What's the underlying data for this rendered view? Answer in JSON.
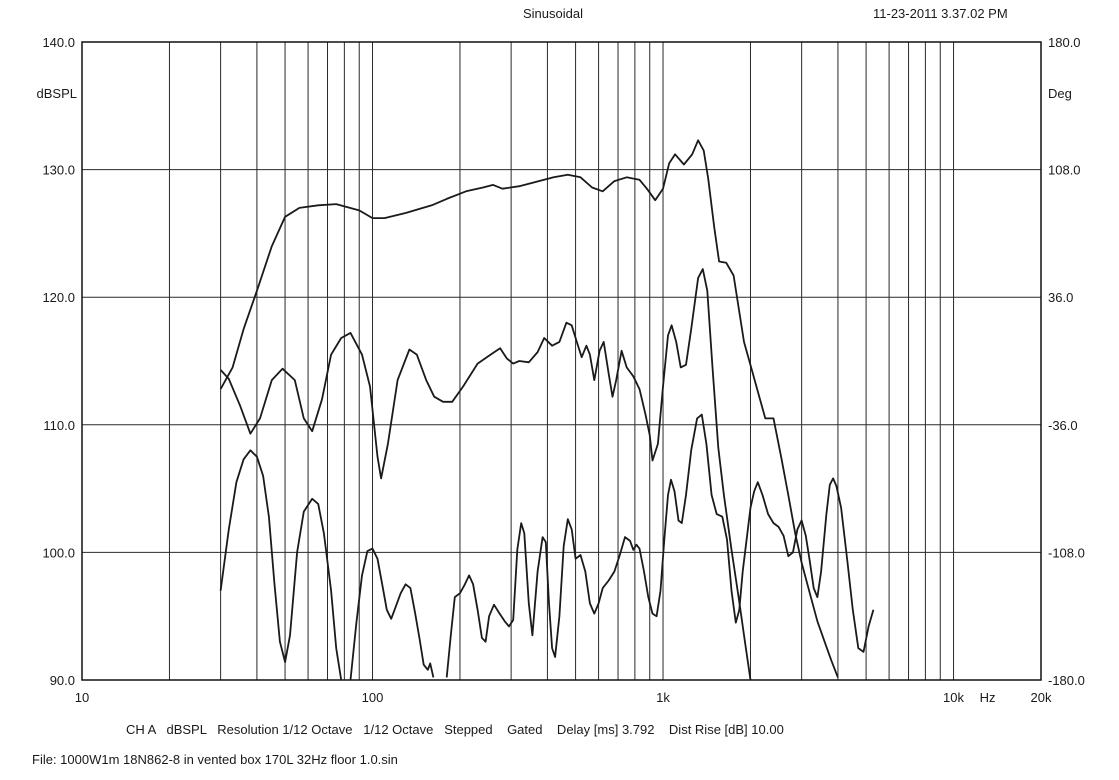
{
  "header": {
    "mode": "Sinusoidal",
    "timestamp": "11-23-2011 3.37.02 PM"
  },
  "footer": {
    "settings": "CH A   dBSPL   Resolution 1/12 Octave   1/12 Octave   Stepped    Gated    Delay [ms] 3.792    Dist Rise [dB] 10.00",
    "file": "File: 1000W1m 18N862-8 in vented box 170L 32Hz floor 1.0.sin"
  },
  "chart_data": {
    "type": "line",
    "x_scale": "log",
    "xlim": [
      10,
      20000
    ],
    "ylim": [
      90,
      140
    ],
    "ylim_right": [
      -180,
      180
    ],
    "grid": true,
    "ylabel": "dBSPL",
    "ylabel_right": "Deg",
    "xlabel": "Hz",
    "y_ticks": [
      "90.0",
      "100.0",
      "110.0",
      "120.0",
      "130.0",
      "140.0"
    ],
    "y_ticks_right": [
      "-180.0",
      "-108.0",
      "-36.0",
      "36.0",
      "108.0",
      "180.0"
    ],
    "x_tick_labels": [
      {
        "x": 10,
        "label": "10"
      },
      {
        "x": 100,
        "label": "100"
      },
      {
        "x": 1000,
        "label": "1k"
      },
      {
        "x": 10000,
        "label": "10k"
      },
      {
        "x": 20000,
        "label": "20k"
      }
    ],
    "series": [
      {
        "role": "magnitude",
        "axis": "left",
        "points": [
          [
            30,
            112.8
          ],
          [
            33,
            114.5
          ],
          [
            36,
            117.5
          ],
          [
            40,
            120.5
          ],
          [
            45,
            124
          ],
          [
            50,
            126.3
          ],
          [
            56,
            127
          ],
          [
            65,
            127.2
          ],
          [
            75,
            127.3
          ],
          [
            90,
            126.8
          ],
          [
            100,
            126.2
          ],
          [
            110,
            126.2
          ],
          [
            130,
            126.6
          ],
          [
            160,
            127.2
          ],
          [
            180,
            127.7
          ],
          [
            210,
            128.3
          ],
          [
            240,
            128.6
          ],
          [
            260,
            128.8
          ],
          [
            280,
            128.5
          ],
          [
            320,
            128.7
          ],
          [
            360,
            129
          ],
          [
            420,
            129.4
          ],
          [
            470,
            129.6
          ],
          [
            520,
            129.4
          ],
          [
            570,
            128.6
          ],
          [
            620,
            128.3
          ],
          [
            680,
            129.1
          ],
          [
            750,
            129.4
          ],
          [
            830,
            129.2
          ],
          [
            880,
            128.5
          ],
          [
            940,
            127.6
          ],
          [
            1000,
            128.5
          ],
          [
            1050,
            130.5
          ],
          [
            1100,
            131.2
          ],
          [
            1180,
            130.4
          ],
          [
            1260,
            131.2
          ],
          [
            1320,
            132.3
          ],
          [
            1380,
            131.5
          ],
          [
            1430,
            129.3
          ],
          [
            1500,
            125.5
          ],
          [
            1560,
            122.8
          ],
          [
            1650,
            122.7
          ],
          [
            1750,
            121.7
          ],
          [
            1900,
            116.5
          ],
          [
            2050,
            113.8
          ],
          [
            2250,
            110.5
          ],
          [
            2400,
            110.5
          ],
          [
            2550,
            107.5
          ],
          [
            2700,
            104.5
          ],
          [
            2850,
            101.5
          ],
          [
            3000,
            99.2
          ],
          [
            3200,
            96.8
          ],
          [
            3400,
            94.6
          ],
          [
            3600,
            93
          ],
          [
            3800,
            91.5
          ],
          [
            4000,
            90.2
          ]
        ]
      },
      {
        "role": "curve-2",
        "axis": "left",
        "points": [
          [
            30,
            114.3
          ],
          [
            32,
            113.6
          ],
          [
            35,
            111.5
          ],
          [
            38,
            109.3
          ],
          [
            41,
            110.5
          ],
          [
            45,
            113.5
          ],
          [
            49,
            114.4
          ],
          [
            54,
            113.5
          ],
          [
            58,
            110.5
          ],
          [
            62,
            109.5
          ],
          [
            67,
            112
          ],
          [
            72,
            115.5
          ],
          [
            78,
            116.8
          ],
          [
            84,
            117.2
          ],
          [
            92,
            115.5
          ],
          [
            98,
            113
          ],
          [
            104,
            107.5
          ],
          [
            107,
            105.8
          ],
          [
            113,
            108.5
          ],
          [
            122,
            113.5
          ],
          [
            134,
            115.9
          ],
          [
            142,
            115.5
          ],
          [
            153,
            113.5
          ],
          [
            163,
            112.2
          ],
          [
            175,
            111.8
          ],
          [
            188,
            111.8
          ],
          [
            205,
            113
          ],
          [
            230,
            114.8
          ],
          [
            255,
            115.5
          ],
          [
            275,
            116
          ],
          [
            290,
            115.2
          ],
          [
            305,
            114.8
          ],
          [
            320,
            115
          ],
          [
            345,
            114.9
          ],
          [
            370,
            115.7
          ],
          [
            390,
            116.8
          ],
          [
            415,
            116.2
          ],
          [
            440,
            116.5
          ],
          [
            465,
            118
          ],
          [
            485,
            117.8
          ],
          [
            505,
            116.5
          ],
          [
            525,
            115.3
          ],
          [
            545,
            116.2
          ],
          [
            560,
            115.5
          ],
          [
            580,
            113.5
          ],
          [
            605,
            115.8
          ],
          [
            625,
            116.5
          ],
          [
            650,
            114
          ],
          [
            670,
            112.2
          ],
          [
            690,
            113.5
          ],
          [
            720,
            115.8
          ],
          [
            750,
            114.5
          ],
          [
            790,
            113.8
          ],
          [
            830,
            112.8
          ],
          [
            870,
            110.8
          ],
          [
            900,
            109.2
          ],
          [
            920,
            107.2
          ],
          [
            960,
            108.5
          ],
          [
            1000,
            113
          ],
          [
            1040,
            117
          ],
          [
            1070,
            117.8
          ],
          [
            1110,
            116.5
          ],
          [
            1150,
            114.5
          ],
          [
            1200,
            114.7
          ],
          [
            1250,
            117.5
          ],
          [
            1320,
            121.5
          ],
          [
            1370,
            122.2
          ],
          [
            1420,
            120.5
          ],
          [
            1480,
            114.5
          ],
          [
            1550,
            108.2
          ],
          [
            1620,
            104.5
          ],
          [
            1720,
            100.2
          ],
          [
            1820,
            96.5
          ],
          [
            1920,
            92.8
          ],
          [
            2000,
            90
          ]
        ]
      },
      {
        "role": "phase",
        "axis": "left",
        "points": [
          [
            30,
            97
          ],
          [
            32,
            101.8
          ],
          [
            34,
            105.5
          ],
          [
            36,
            107.3
          ],
          [
            38,
            108
          ],
          [
            40,
            107.5
          ],
          [
            42,
            106
          ],
          [
            44,
            102.8
          ],
          [
            46,
            97.5
          ],
          [
            48,
            93
          ],
          [
            50,
            91.4
          ],
          [
            52,
            93.5
          ],
          [
            55,
            100
          ],
          [
            58,
            103.2
          ],
          [
            62,
            104.2
          ],
          [
            65,
            103.8
          ],
          [
            68,
            101.5
          ],
          [
            72,
            97
          ],
          [
            75,
            92.5
          ],
          [
            78,
            90
          ]
        ],
        "gap_after": true,
        "points_b": [
          [
            84,
            90
          ],
          [
            88,
            94.5
          ],
          [
            92,
            98.2
          ],
          [
            96,
            100.1
          ],
          [
            100,
            100.3
          ],
          [
            104,
            99.5
          ],
          [
            108,
            97.5
          ],
          [
            112,
            95.5
          ],
          [
            116,
            94.8
          ],
          [
            120,
            95.7
          ],
          [
            125,
            96.8
          ],
          [
            130,
            97.5
          ],
          [
            135,
            97.2
          ],
          [
            140,
            95.3
          ],
          [
            145,
            93.3
          ],
          [
            150,
            91.2
          ],
          [
            155,
            90.8
          ],
          [
            158,
            91.3
          ],
          [
            162,
            90.2
          ]
        ],
        "points_c": [
          [
            180,
            90.2
          ],
          [
            186,
            93.5
          ],
          [
            192,
            96.5
          ],
          [
            200,
            96.8
          ],
          [
            208,
            97.5
          ],
          [
            215,
            98.2
          ],
          [
            222,
            97.5
          ],
          [
            230,
            95.5
          ],
          [
            238,
            93.3
          ],
          [
            245,
            93
          ],
          [
            252,
            95
          ],
          [
            262,
            95.9
          ],
          [
            272,
            95.3
          ],
          [
            285,
            94.6
          ],
          [
            295,
            94.2
          ],
          [
            305,
            94.7
          ],
          [
            315,
            100.2
          ],
          [
            325,
            102.3
          ],
          [
            333,
            101.5
          ],
          [
            345,
            96
          ],
          [
            355,
            93.5
          ],
          [
            370,
            98.5
          ],
          [
            385,
            101.2
          ],
          [
            395,
            100.8
          ],
          [
            405,
            96
          ],
          [
            415,
            92.5
          ],
          [
            425,
            91.8
          ],
          [
            440,
            95
          ],
          [
            455,
            100.5
          ],
          [
            470,
            102.6
          ],
          [
            485,
            101.8
          ],
          [
            500,
            99.5
          ],
          [
            520,
            99.8
          ],
          [
            540,
            98.5
          ],
          [
            560,
            96
          ],
          [
            580,
            95.2
          ],
          [
            600,
            96
          ],
          [
            620,
            97.2
          ],
          [
            650,
            97.8
          ],
          [
            680,
            98.5
          ],
          [
            710,
            99.8
          ],
          [
            740,
            101.2
          ],
          [
            770,
            100.9
          ],
          [
            790,
            100.2
          ],
          [
            810,
            100.6
          ],
          [
            830,
            100.3
          ],
          [
            860,
            98.5
          ],
          [
            890,
            96.5
          ],
          [
            920,
            95.2
          ],
          [
            950,
            95
          ],
          [
            980,
            97
          ],
          [
            1010,
            101
          ],
          [
            1040,
            104.5
          ],
          [
            1065,
            105.7
          ],
          [
            1095,
            104.8
          ],
          [
            1130,
            102.5
          ],
          [
            1160,
            102.3
          ],
          [
            1200,
            104.5
          ],
          [
            1250,
            108
          ],
          [
            1310,
            110.5
          ],
          [
            1360,
            110.8
          ],
          [
            1410,
            108.5
          ],
          [
            1470,
            104.5
          ],
          [
            1530,
            103
          ],
          [
            1600,
            102.8
          ],
          [
            1660,
            101
          ],
          [
            1720,
            97
          ],
          [
            1780,
            94.5
          ],
          [
            1830,
            95.5
          ],
          [
            1880,
            98.5
          ],
          [
            1940,
            101
          ],
          [
            2000,
            103.5
          ],
          [
            2060,
            104.8
          ],
          [
            2120,
            105.5
          ],
          [
            2200,
            104.5
          ],
          [
            2300,
            103
          ],
          [
            2400,
            102.3
          ],
          [
            2500,
            102
          ],
          [
            2600,
            101.3
          ],
          [
            2700,
            99.7
          ],
          [
            2800,
            100
          ],
          [
            2900,
            101.8
          ],
          [
            3000,
            102.5
          ],
          [
            3100,
            101.3
          ],
          [
            3200,
            99.3
          ],
          [
            3300,
            97.2
          ],
          [
            3400,
            96.5
          ],
          [
            3500,
            98.5
          ],
          [
            3650,
            103
          ],
          [
            3750,
            105.3
          ],
          [
            3850,
            105.8
          ],
          [
            3950,
            105.2
          ],
          [
            4100,
            103.5
          ],
          [
            4300,
            99.5
          ],
          [
            4500,
            95.5
          ],
          [
            4700,
            92.5
          ],
          [
            4900,
            92.2
          ],
          [
            5100,
            94.2
          ],
          [
            5300,
            95.5
          ]
        ]
      }
    ]
  }
}
